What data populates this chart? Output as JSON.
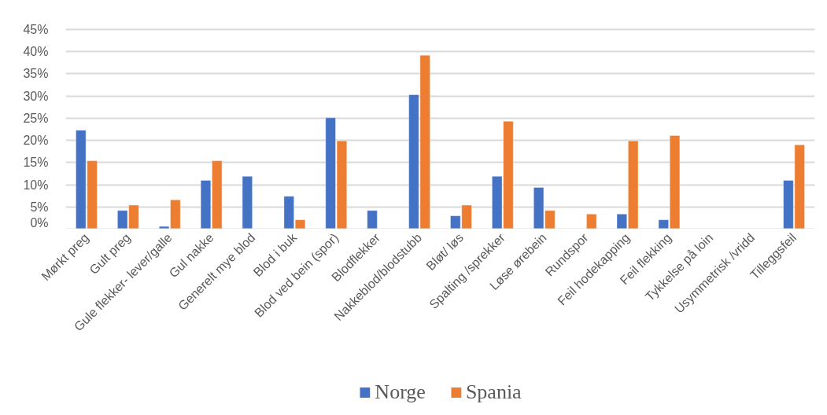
{
  "chart_data": {
    "type": "bar",
    "categories": [
      "Mørkt preg",
      "Gult preg",
      "Gule flekker- lever/galle",
      "Gul nakke",
      "Generelt mye blod",
      "Blod i buk",
      "Blod ved bein (spor)",
      "Blodflekker",
      "Nakkeblod/blodstubb",
      "Bløt/ løs",
      "Spalting /sprekker",
      "Løse ørebein",
      "Rundspor",
      "Feil hodekapping",
      "Feil flekking",
      "Tykkelse på loin",
      "Usymmetrisk /vridd",
      "Tilleggsfeil"
    ],
    "series": [
      {
        "name": "Norge",
        "color": "#4472c4",
        "values": [
          22.3,
          4.2,
          0.6,
          11.0,
          11.9,
          7.4,
          25.1,
          4.2,
          30.3,
          3.0,
          11.9,
          9.4,
          null,
          3.4,
          2.1,
          null,
          null,
          11.0
        ]
      },
      {
        "name": "Spania",
        "color": "#ed7d31",
        "values": [
          15.4,
          5.4,
          6.6,
          15.4,
          null,
          2.1,
          19.9,
          null,
          39.2,
          5.4,
          24.3,
          4.2,
          3.4,
          19.9,
          21.1,
          null,
          null,
          19.0
        ]
      }
    ],
    "ylim": [
      0,
      45
    ],
    "yticks": [
      {
        "value": 0,
        "label": "0%"
      },
      {
        "value": 5,
        "label": "5%"
      },
      {
        "value": 10,
        "label": "10%"
      },
      {
        "value": 15,
        "label": "15%"
      },
      {
        "value": 20,
        "label": "20%"
      },
      {
        "value": 25,
        "label": "25%"
      },
      {
        "value": 30,
        "label": "30%"
      },
      {
        "value": 35,
        "label": "35%"
      },
      {
        "value": 40,
        "label": "40%"
      },
      {
        "value": 45,
        "label": "45%"
      }
    ],
    "grid": "y",
    "legend": "bottom"
  }
}
